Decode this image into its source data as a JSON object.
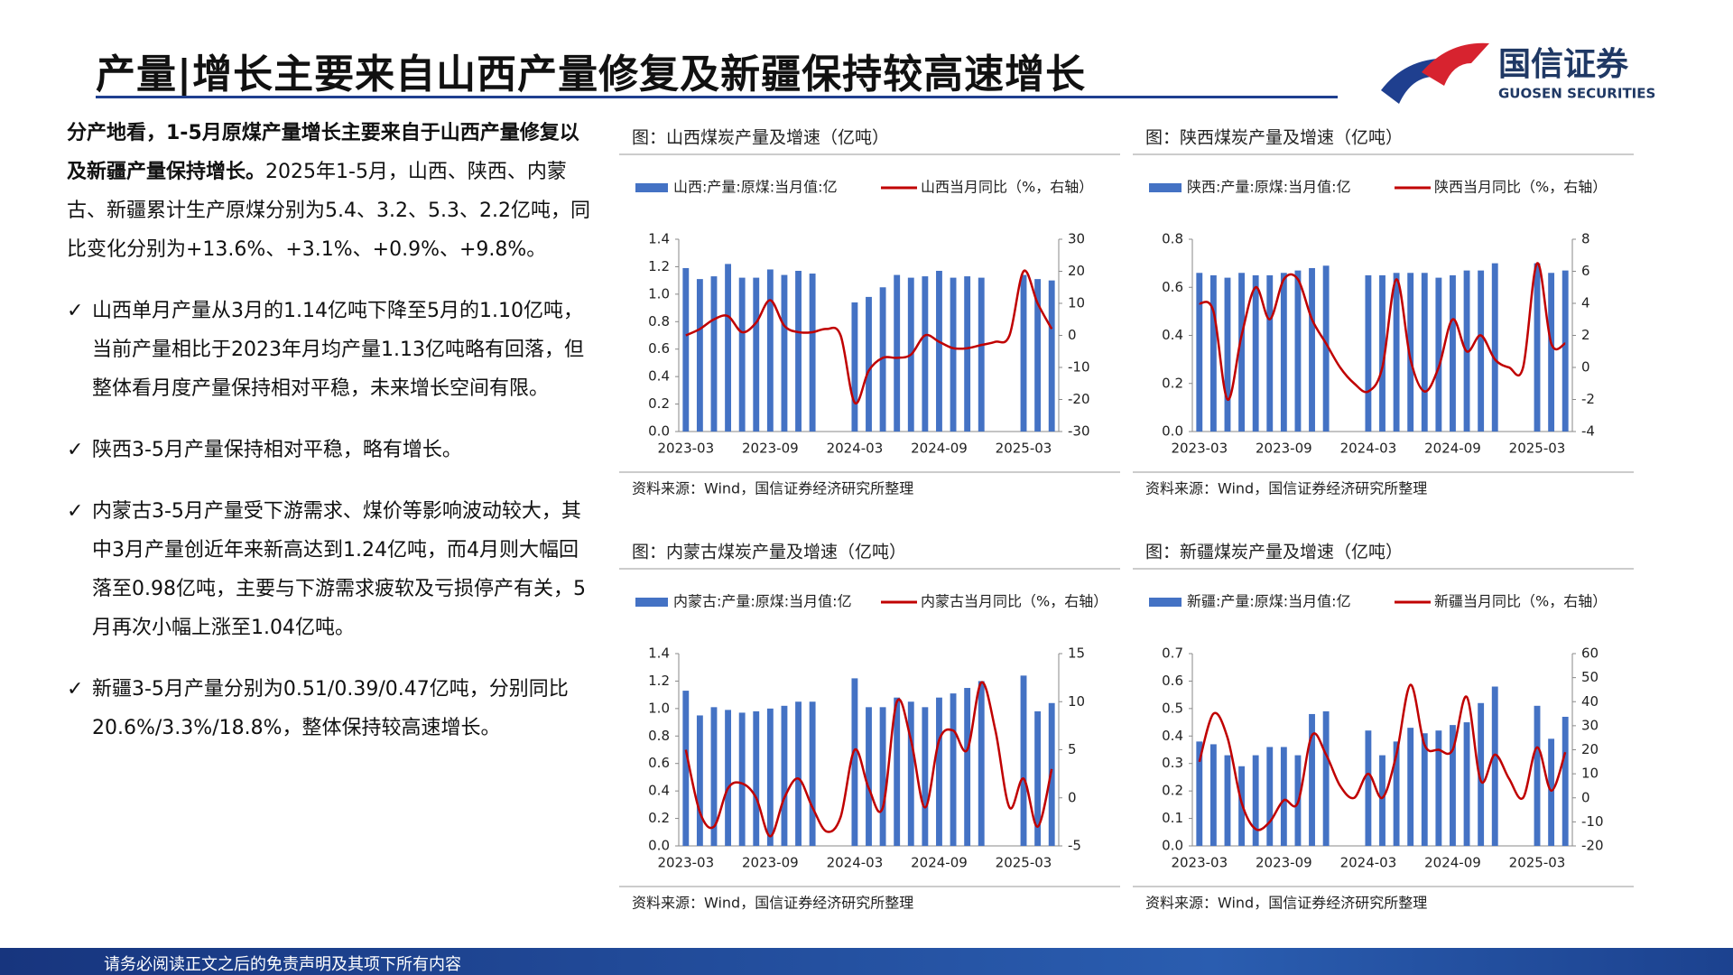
{
  "header": {
    "title": "产量|增长主要来自山西产量修复及新疆保持较高速增长",
    "logo_cn": "国信证券",
    "logo_en": "GUOSEN SECURITIES"
  },
  "text": {
    "intro_bold": "分产地看，1-5月原煤产量增长主要来自于山西产量修复以及新疆产量保持增长。",
    "intro": "2025年1-5月，山西、陕西、内蒙古、新疆累计生产原煤分别为5.4、3.2、5.3、2.2亿吨，同比变化分别为+13.6%、+3.1%、+0.9%、+9.8%。",
    "bullets": [
      "山西单月产量从3月的1.14亿吨下降至5月的1.10亿吨，当前产量相比于2023年月均产量1.13亿吨略有回落，但整体看月度产量保持相对平稳，未来增长空间有限。",
      "陕西3-5月产量保持相对平稳，略有增长。",
      "内蒙古3-5月产量受下游需求、煤价等影响波动较大，其中3月产量创近年来新高达到1.24亿吨，而4月则大幅回落至0.98亿吨，主要与下游需求疲软及亏损停产有关，5月再次小幅上涨至1.04亿吨。",
      "新疆3-5月产量分别为0.51/0.39/0.47亿吨，分别同比20.6%/3.3%/18.8%，整体保持较高速增长。"
    ]
  },
  "footer": "请务必阅读正文之后的免责声明及其项下所有内容",
  "chart_data": [
    {
      "type": "combo",
      "title": "图：山西煤炭产量及增速（亿吨）",
      "source": "资料来源：Wind，国信证券经济研究所整理",
      "x": [
        "2023-03",
        "2023-04",
        "2023-05",
        "2023-06",
        "2023-07",
        "2023-08",
        "2023-09",
        "2023-10",
        "2023-11",
        "2023-12",
        "2024-01",
        "2024-02",
        "2024-03",
        "2024-04",
        "2024-05",
        "2024-06",
        "2024-07",
        "2024-08",
        "2024-09",
        "2024-10",
        "2024-11",
        "2024-12",
        "2025-01",
        "2025-02",
        "2025-03",
        "2025-04",
        "2025-05"
      ],
      "xticks": [
        "2023-03",
        "2023-09",
        "2024-03",
        "2024-09",
        "2025-03"
      ],
      "ylim": [
        0,
        1.4
      ],
      "yticks": [
        {
          "value": 0,
          "label": "0.0"
        },
        0.2,
        0.4,
        0.6,
        0.8,
        {
          "value": 1,
          "label": "1.0"
        },
        1.2,
        1.4
      ],
      "y2lim": [
        -30,
        30
      ],
      "y2ticks": [
        -30,
        -20,
        -10,
        0,
        10,
        20,
        30
      ],
      "series": [
        {
          "name": "山西:产量:原煤:当月值:亿",
          "type": "bar",
          "color": "#4472c4",
          "values": [
            1.19,
            1.11,
            1.13,
            1.22,
            1.12,
            1.12,
            1.18,
            1.14,
            1.17,
            1.15,
            null,
            null,
            0.94,
            0.98,
            1.05,
            1.14,
            1.12,
            1.13,
            1.17,
            1.12,
            1.13,
            1.12,
            null,
            null,
            1.14,
            1.11,
            1.1
          ]
        },
        {
          "name": "山西当月同比（%，右轴）",
          "type": "line",
          "axis": "y2",
          "color": "#c00000",
          "values": [
            0,
            2,
            5,
            6,
            1,
            4,
            11,
            3,
            1,
            1,
            2,
            0,
            -21,
            -11,
            -7,
            -7,
            -6,
            0,
            -2,
            -4,
            -4,
            -3,
            -2,
            0,
            20,
            10,
            2
          ]
        }
      ]
    },
    {
      "type": "combo",
      "title": "图：陕西煤炭产量及增速（亿吨）",
      "source": "资料来源：Wind，国信证券经济研究所整理",
      "x": [
        "2023-03",
        "2023-04",
        "2023-05",
        "2023-06",
        "2023-07",
        "2023-08",
        "2023-09",
        "2023-10",
        "2023-11",
        "2023-12",
        "2024-01",
        "2024-02",
        "2024-03",
        "2024-04",
        "2024-05",
        "2024-06",
        "2024-07",
        "2024-08",
        "2024-09",
        "2024-10",
        "2024-11",
        "2024-12",
        "2025-01",
        "2025-02",
        "2025-03",
        "2025-04",
        "2025-05"
      ],
      "xticks": [
        "2023-03",
        "2023-09",
        "2024-03",
        "2024-09",
        "2025-03"
      ],
      "ylim": [
        0,
        0.8
      ],
      "yticks": [
        {
          "value": 0,
          "label": "0.0"
        },
        0.2,
        0.4,
        0.6,
        0.8
      ],
      "y2lim": [
        -4,
        8
      ],
      "y2ticks": [
        -4,
        -2,
        0,
        2,
        4,
        6,
        8
      ],
      "series": [
        {
          "name": "陕西:产量:原煤:当月值:亿",
          "type": "bar",
          "color": "#4472c4",
          "values": [
            0.66,
            0.65,
            0.64,
            0.66,
            0.65,
            0.65,
            0.66,
            0.67,
            0.68,
            0.69,
            null,
            null,
            0.65,
            0.65,
            0.66,
            0.66,
            0.66,
            0.64,
            0.65,
            0.67,
            0.67,
            0.7,
            null,
            null,
            0.7,
            0.66,
            0.67
          ]
        },
        {
          "name": "陕西当月同比（%，右轴）",
          "type": "line",
          "axis": "y2",
          "color": "#c00000",
          "values": [
            4,
            3.5,
            -2,
            2,
            5,
            3,
            5.5,
            5.5,
            3,
            1.5,
            0,
            -1,
            -1.5,
            0,
            5.5,
            0.5,
            -1.5,
            0,
            3,
            1,
            2,
            0.5,
            0,
            0,
            6.5,
            1.5,
            1.5
          ]
        }
      ]
    },
    {
      "type": "combo",
      "title": "图：内蒙古煤炭产量及增速（亿吨）",
      "source": "资料来源：Wind，国信证券经济研究所整理",
      "x": [
        "2023-03",
        "2023-04",
        "2023-05",
        "2023-06",
        "2023-07",
        "2023-08",
        "2023-09",
        "2023-10",
        "2023-11",
        "2023-12",
        "2024-01",
        "2024-02",
        "2024-03",
        "2024-04",
        "2024-05",
        "2024-06",
        "2024-07",
        "2024-08",
        "2024-09",
        "2024-10",
        "2024-11",
        "2024-12",
        "2025-01",
        "2025-02",
        "2025-03",
        "2025-04",
        "2025-05"
      ],
      "xticks": [
        "2023-03",
        "2023-09",
        "2024-03",
        "2024-09",
        "2025-03"
      ],
      "ylim": [
        0,
        1.4
      ],
      "yticks": [
        {
          "value": 0,
          "label": "0.0"
        },
        0.2,
        0.4,
        0.6,
        0.8,
        {
          "value": 1,
          "label": "1.0"
        },
        1.2,
        1.4
      ],
      "y2lim": [
        -5,
        15
      ],
      "y2ticks": [
        -5,
        0,
        5,
        10,
        15
      ],
      "series": [
        {
          "name": "内蒙古:产量:原煤:当月值:亿",
          "type": "bar",
          "color": "#4472c4",
          "values": [
            1.13,
            0.95,
            1.01,
            0.99,
            0.97,
            0.98,
            1.0,
            1.02,
            1.05,
            1.05,
            null,
            null,
            1.22,
            1.01,
            1.01,
            1.08,
            1.05,
            1.01,
            1.08,
            1.11,
            1.15,
            1.2,
            null,
            null,
            1.24,
            0.98,
            1.04
          ]
        },
        {
          "name": "内蒙古当月同比（%，右轴）",
          "type": "line",
          "axis": "y2",
          "color": "#c00000",
          "values": [
            5,
            -1.5,
            -3,
            1,
            1.5,
            0,
            -4,
            0,
            2,
            -1,
            -3.5,
            -2,
            5,
            1,
            -1,
            10,
            6,
            -1,
            6,
            7,
            5,
            12,
            7,
            -1,
            2,
            -3,
            3
          ]
        }
      ]
    },
    {
      "type": "combo",
      "title": "图：新疆煤炭产量及增速（亿吨）",
      "source": "资料来源：Wind，国信证券经济研究所整理",
      "x": [
        "2023-03",
        "2023-04",
        "2023-05",
        "2023-06",
        "2023-07",
        "2023-08",
        "2023-09",
        "2023-10",
        "2023-11",
        "2023-12",
        "2024-01",
        "2024-02",
        "2024-03",
        "2024-04",
        "2024-05",
        "2024-06",
        "2024-07",
        "2024-08",
        "2024-09",
        "2024-10",
        "2024-11",
        "2024-12",
        "2025-01",
        "2025-02",
        "2025-03",
        "2025-04",
        "2025-05"
      ],
      "xticks": [
        "2023-03",
        "2023-09",
        "2024-03",
        "2024-09",
        "2025-03"
      ],
      "ylim": [
        0,
        0.7
      ],
      "yticks": [
        {
          "value": 0,
          "label": "0.0"
        },
        0.1,
        0.2,
        0.3,
        0.4,
        0.5,
        0.6,
        0.7
      ],
      "y2lim": [
        -20,
        60
      ],
      "y2ticks": [
        -20,
        -10,
        0,
        10,
        20,
        30,
        40,
        50,
        60
      ],
      "series": [
        {
          "name": "新疆:产量:原煤:当月值:亿",
          "type": "bar",
          "color": "#4472c4",
          "values": [
            0.38,
            0.37,
            0.33,
            0.29,
            0.33,
            0.36,
            0.36,
            0.33,
            0.48,
            0.49,
            null,
            null,
            0.42,
            0.33,
            0.38,
            0.43,
            0.41,
            0.42,
            0.44,
            0.45,
            0.52,
            0.58,
            null,
            null,
            0.51,
            0.39,
            0.47
          ]
        },
        {
          "name": "新疆当月同比（%，右轴）",
          "type": "line",
          "axis": "y2",
          "color": "#c00000",
          "values": [
            15,
            35,
            25,
            -2,
            -13,
            -10,
            -1,
            -2,
            26,
            18,
            5,
            0,
            10,
            0,
            18,
            47,
            22,
            20,
            20,
            42,
            7,
            18,
            8,
            0,
            21,
            3,
            19
          ]
        }
      ]
    }
  ]
}
